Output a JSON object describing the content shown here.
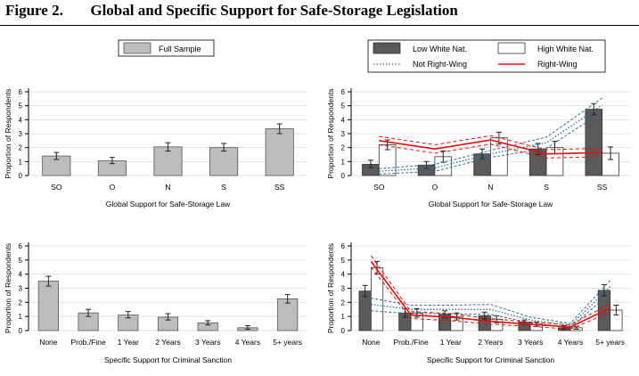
{
  "figure": {
    "label": "Figure 2.",
    "title": "Global and Specific Support for Safe-Storage Legislation"
  },
  "colors": {
    "full_sample_bar": "#bdbdbd",
    "low_white_bar": "#5a5a5a",
    "high_white_bar": "#ffffff",
    "not_right_wing_line": "#3a6f8c",
    "right_wing_line": "#e01010"
  },
  "chart_data": [
    {
      "type": "bar",
      "panel": "top-left",
      "legend": {
        "position": "top",
        "entries": [
          "Full Sample"
        ]
      },
      "categories": [
        "SO",
        "O",
        "N",
        "S",
        "SS"
      ],
      "series": [
        {
          "name": "Full Sample",
          "values": [
            1.4,
            1.05,
            2.05,
            2.0,
            3.35
          ],
          "ci_low": [
            1.15,
            0.85,
            1.75,
            1.75,
            3.0
          ],
          "ci_high": [
            1.65,
            1.3,
            2.35,
            2.3,
            3.7
          ]
        }
      ],
      "xlabel": "Global Support for Safe-Storage Law",
      "ylabel": "Proportion of Respondents",
      "ylim": [
        0,
        6
      ],
      "yticks": [
        "0",
        "1",
        "2",
        "3",
        "4",
        "5",
        "6"
      ],
      "grid": true
    },
    {
      "type": "bar",
      "panel": "top-right",
      "legend": {
        "position": "top",
        "entries": [
          "Low White Nat.",
          "High White Nat.",
          "Not Right-Wing",
          "Right-Wing"
        ]
      },
      "categories": [
        "SO",
        "O",
        "N",
        "S",
        "SS"
      ],
      "series": [
        {
          "name": "Low White Nat.",
          "values": [
            0.8,
            0.75,
            1.55,
            1.9,
            4.75
          ],
          "ci_low": [
            0.55,
            0.5,
            1.2,
            1.5,
            4.35
          ],
          "ci_high": [
            1.1,
            1.0,
            1.9,
            2.3,
            5.15
          ]
        },
        {
          "name": "High White Nat.",
          "values": [
            2.2,
            1.35,
            2.7,
            2.0,
            1.6
          ],
          "ci_low": [
            1.85,
            0.95,
            2.25,
            1.55,
            1.15
          ],
          "ci_high": [
            2.55,
            1.75,
            3.1,
            2.45,
            2.05
          ]
        }
      ],
      "lines": [
        {
          "name": "Not Right-Wing",
          "values": [
            0.3,
            0.55,
            1.55,
            2.35,
            5.05
          ],
          "ci_low": [
            0.1,
            0.3,
            1.3,
            1.95,
            4.55
          ],
          "ci_high": [
            0.5,
            0.8,
            1.8,
            2.75,
            5.55
          ]
        },
        {
          "name": "Right-Wing",
          "values": [
            2.5,
            1.9,
            2.55,
            1.55,
            1.65
          ],
          "ci_low": [
            2.2,
            1.6,
            2.25,
            1.25,
            1.35
          ],
          "ci_high": [
            2.8,
            2.2,
            2.85,
            1.85,
            1.95
          ]
        }
      ],
      "xlabel": "Global Support for Safe-Storage Law",
      "ylabel": "Proportion of Respondents",
      "ylim": [
        0,
        6
      ],
      "yticks": [
        "0",
        "1",
        "2",
        "3",
        "4",
        "5",
        "6"
      ],
      "grid": true
    },
    {
      "type": "bar",
      "panel": "bottom-left",
      "categories": [
        "None",
        "Prob./Fine",
        "1 Year",
        "2 Years",
        "3 Years",
        "4 Years",
        "5+ years"
      ],
      "series": [
        {
          "name": "Full Sample",
          "values": [
            3.5,
            1.25,
            1.1,
            0.95,
            0.55,
            0.2,
            2.25
          ],
          "ci_low": [
            3.15,
            1.0,
            0.9,
            0.75,
            0.4,
            0.1,
            1.95
          ],
          "ci_high": [
            3.85,
            1.5,
            1.35,
            1.2,
            0.7,
            0.35,
            2.55
          ]
        }
      ],
      "xlabel": "Specific Support for Criminal Sanction",
      "ylabel": "Proportion of Respondents",
      "ylim": [
        0,
        6
      ],
      "yticks": [
        "0",
        "1",
        "2",
        "3",
        "4",
        "5",
        "6"
      ],
      "grid": true
    },
    {
      "type": "bar",
      "panel": "bottom-right",
      "categories": [
        "None",
        "Prob./Fine",
        "1 Year",
        "2 Years",
        "3 Years",
        "4 Years",
        "5+ years"
      ],
      "series": [
        {
          "name": "Low White Nat.",
          "values": [
            2.8,
            1.25,
            1.15,
            1.05,
            0.6,
            0.2,
            2.85
          ],
          "ci_low": [
            2.4,
            0.95,
            0.9,
            0.8,
            0.45,
            0.1,
            2.45
          ],
          "ci_high": [
            3.2,
            1.55,
            1.4,
            1.3,
            0.75,
            0.35,
            3.25
          ]
        },
        {
          "name": "High White Nat.",
          "values": [
            4.45,
            1.25,
            1.0,
            0.8,
            0.45,
            0.2,
            1.45
          ],
          "ci_low": [
            4.0,
            0.95,
            0.75,
            0.55,
            0.3,
            0.1,
            1.1
          ],
          "ci_high": [
            4.9,
            1.55,
            1.25,
            1.05,
            0.6,
            0.3,
            1.8
          ]
        }
      ],
      "lines": [
        {
          "name": "Not Right-Wing",
          "values": [
            1.85,
            1.5,
            1.5,
            1.5,
            0.75,
            0.35,
            3.1
          ],
          "ci_low": [
            1.4,
            1.2,
            1.2,
            1.15,
            0.55,
            0.2,
            2.65
          ],
          "ci_high": [
            2.3,
            1.8,
            1.8,
            1.85,
            0.95,
            0.5,
            3.55
          ]
        },
        {
          "name": "Right-Wing",
          "values": [
            4.9,
            1.1,
            0.95,
            0.65,
            0.45,
            0.25,
            1.6
          ],
          "ci_low": [
            4.5,
            0.85,
            0.7,
            0.45,
            0.3,
            0.1,
            1.3
          ],
          "ci_high": [
            5.3,
            1.35,
            1.2,
            0.85,
            0.6,
            0.4,
            1.9
          ]
        }
      ],
      "xlabel": "Specific Support for Criminal Sanction",
      "ylabel": "Proportion of Respondents",
      "ylim": [
        0,
        6
      ],
      "yticks": [
        "0",
        "1",
        "2",
        "3",
        "4",
        "5",
        "6"
      ],
      "grid": true
    }
  ]
}
